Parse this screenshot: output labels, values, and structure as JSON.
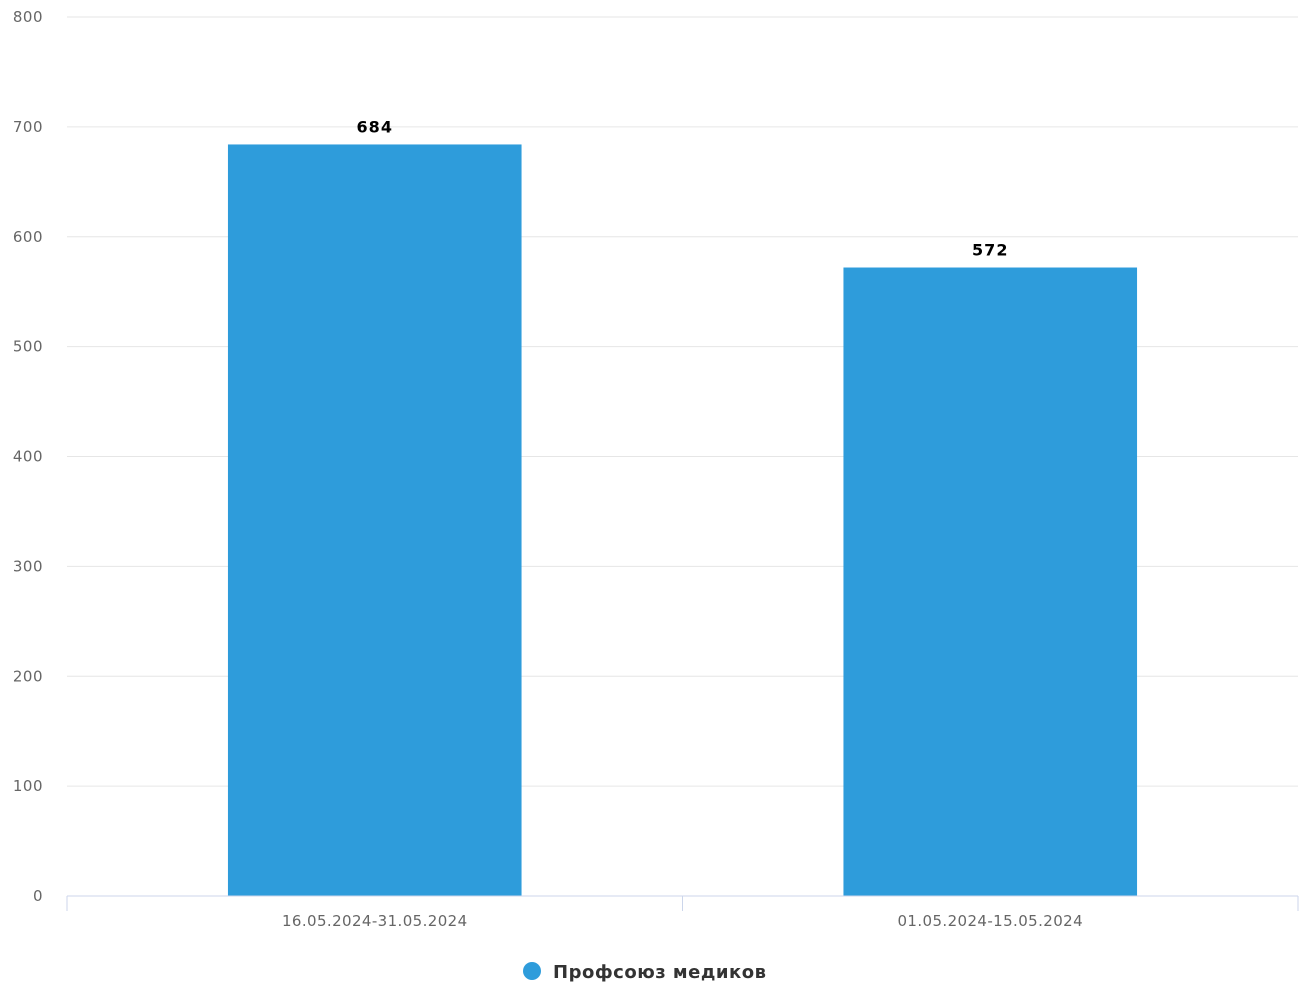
{
  "chart_data": {
    "type": "bar",
    "categories": [
      "16.05.2024-31.05.2024",
      "01.05.2024-15.05.2024"
    ],
    "series": [
      {
        "name": "Профсоюз медиков",
        "values": [
          684,
          572
        ],
        "color": "#2e9cdb"
      }
    ],
    "y_ticks": [
      "0",
      "100",
      "200",
      "300",
      "400",
      "500",
      "600",
      "700",
      "800"
    ],
    "ylim": [
      0,
      800
    ],
    "grid": true,
    "legend_position": "bottom-center"
  }
}
